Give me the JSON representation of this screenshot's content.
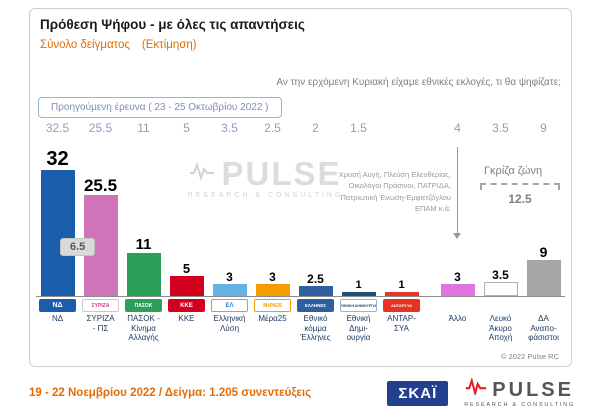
{
  "header": {
    "title": "Πρόθεση Ψήφου - με όλες τις απαντήσεις",
    "sample_label": "Σύνολο δείγματος",
    "estimate_label": "(Εκτίμηση)",
    "question": "Αν την ερχόμενη Κυριακή είχαμε εθνικές εκλογές, τι θα ψηφίζατε;"
  },
  "previous": {
    "label": "Προηγούμενη έρευνα  ( 23 - 25 Οκτωβρίου  2022 )"
  },
  "annotations": {
    "lead_gap": "6.5",
    "gray_zone_label": "Γκρίζα ζώνη",
    "gray_zone_value": "12.5",
    "small_parties_note": "Χρυσή Αυγή, Πλεύση Ελευθερίας,\nΟικολόγοι Πράσινοι, ΠΑΤΡΙΔΑ,\nΠατριωτική Ένωση-Εμφιετζόγλου\nΕΠΑΜ κ.ά.",
    "copyright": "© 2022 Pulse RC"
  },
  "watermark": {
    "text": "PULSE",
    "sub": "RESEARCH & CONSULTING"
  },
  "footer": {
    "fieldwork": "19 - 22 Νοεμβρίου 2022  /  Δείγμα:  1.205 συνεντεύξεις",
    "skai_label": "ΣΚΑΪ",
    "pulse_label": "PULSE",
    "pulse_sub": "RESEARCH & CONSULTING"
  },
  "colors": {
    "accent_orange": "#e36c09",
    "label_navy": "#17375e",
    "previous_values": "#8ba0be",
    "gray_zone": "#808080",
    "skai_blue": "#23408f",
    "pulse_red": "#e31e24"
  },
  "chart_data": {
    "type": "bar",
    "title": "Πρόθεση Ψήφου - με όλες τις απαντήσεις",
    "categories": [
      "ΝΔ",
      "ΣΥΡΙΖΑ - ΠΣ",
      "ΠΑΣΟΚ - Κίνημα Αλλαγής",
      "ΚΚΕ",
      "Ελληνική Λύση",
      "Μέρα25",
      "Εθνικό κόμμα Έλληνες",
      "Εθνική Δημιουργία",
      "ΑΝΤΑΡΣΥΑ",
      "Άλλο",
      "Λευκό Άκυρο Αποχή",
      "ΔΑ Αναποφάσιστοι"
    ],
    "series": [
      {
        "name": "Προηγούμενη έρευνα ( 23 - 25 Οκτωβρίου 2022 )",
        "values": [
          32.5,
          25.5,
          11,
          5,
          3.5,
          2.5,
          2,
          1.5,
          null,
          4,
          3.5,
          9
        ]
      },
      {
        "name": "19 - 22 Νοεμβρίου 2022 (Εκτίμηση)",
        "values": [
          32,
          25.5,
          11,
          5,
          3,
          3,
          2.5,
          1,
          1,
          3,
          3.5,
          9
        ]
      }
    ],
    "annotations": {
      "nd_syriza_gap": 6.5,
      "gray_zone_total": 12.5
    },
    "xlabel": "",
    "ylabel": "",
    "ylim": [
      0,
      35
    ],
    "grid": false,
    "legend_position": "none"
  },
  "parties": [
    {
      "label": "ΝΔ",
      "value": 32,
      "value_label": "32",
      "prev": "32.5",
      "color": "#1a5dad",
      "logo": {
        "text": "ΝΔ",
        "bg": "#1a5dad",
        "fg": "#ffffff",
        "border": "#1a5dad",
        "size": 7
      }
    },
    {
      "label": "ΣΥΡΙΖΑ\n- ΠΣ",
      "value": 25.5,
      "value_label": "25.5",
      "prev": "25.5",
      "color": "#cf74b8",
      "logo": {
        "text": "ΣΥΡΙΖΑ",
        "bg": "#ffffff",
        "fg": "#c9447f",
        "border": "#c9c9c9",
        "size": 5
      }
    },
    {
      "label": "ΠΑΣΟΚ -\nΚίνημα\nΑλλαγής",
      "value": 11,
      "value_label": "11",
      "prev": "11",
      "color": "#2aa05a",
      "logo": {
        "text": "ΠΑΣΟΚ",
        "bg": "#2aa05a",
        "fg": "#ffffff",
        "border": "#2aa05a",
        "size": 5
      }
    },
    {
      "label": "ΚΚΕ",
      "value": 5,
      "value_label": "5",
      "prev": "5",
      "color": "#d2001e",
      "logo": {
        "text": "ΚΚΕ",
        "bg": "#d2001e",
        "fg": "#ffffff",
        "border": "#d2001e",
        "size": 6
      }
    },
    {
      "label": "Ελληνική\nΛύση",
      "value": 3,
      "value_label": "3",
      "prev": "3.5",
      "color": "#64b2e2",
      "logo": {
        "text": "ΕΛ",
        "bg": "#ffffff",
        "fg": "#2a7fc1",
        "border": "#64b2e2",
        "size": 6
      }
    },
    {
      "label": "Μέρα25",
      "value": 3,
      "value_label": "3",
      "prev": "2.5",
      "color": "#f59c00",
      "logo": {
        "text": "ΜέΡΑ25",
        "bg": "#ffffff",
        "fg": "#f59c00",
        "border": "#f59c00",
        "size": 5
      }
    },
    {
      "label": "Εθνικό\nκόμμα\nΈλληνες",
      "value": 2.5,
      "value_label": "2.5",
      "prev": "2",
      "color": "#2f5f9e",
      "logo": {
        "text": "ΕΛΛΗΝΕΣ",
        "bg": "#2f5f9e",
        "fg": "#ffffff",
        "border": "#2f5f9e",
        "size": 4.5
      }
    },
    {
      "label": "Εθνική\nΔημι-\nουργία",
      "value": 1,
      "value_label": "1",
      "prev": "1.5",
      "color": "#1f4e79",
      "logo": {
        "text": "ΕΘΝΙΚΗ ΔΗΜΙΟΥΡΓΙΑ",
        "bg": "#ffffff",
        "fg": "#1f4e79",
        "border": "#9cb3d4",
        "size": 3.5
      }
    },
    {
      "label": "ΑΝΤΑΡ-\nΣΥΑ",
      "value": 1,
      "value_label": "1",
      "prev": "",
      "color": "#e63323",
      "logo": {
        "text": "ΑΝΤΑΡΣΥΑ",
        "bg": "#e63323",
        "fg": "#ffffff",
        "border": "#e63323",
        "size": 4
      }
    },
    {
      "label": "Άλλο",
      "value": 3,
      "value_label": "3",
      "prev": "4",
      "color": "#de74de",
      "gap_before": true,
      "logo": null
    },
    {
      "label": "Λευκό\nΆκυρο\nΑποχή",
      "value": 3.5,
      "value_label": "3.5",
      "prev": "3.5",
      "color": "#ffffff",
      "bar_border": "#b0b0b0",
      "logo": null
    },
    {
      "label": "ΔΑ\nΑναπο-\nφάσιστοι",
      "value": 9,
      "value_label": "9",
      "prev": "9",
      "color": "#a6a6a6",
      "logo": null
    }
  ]
}
